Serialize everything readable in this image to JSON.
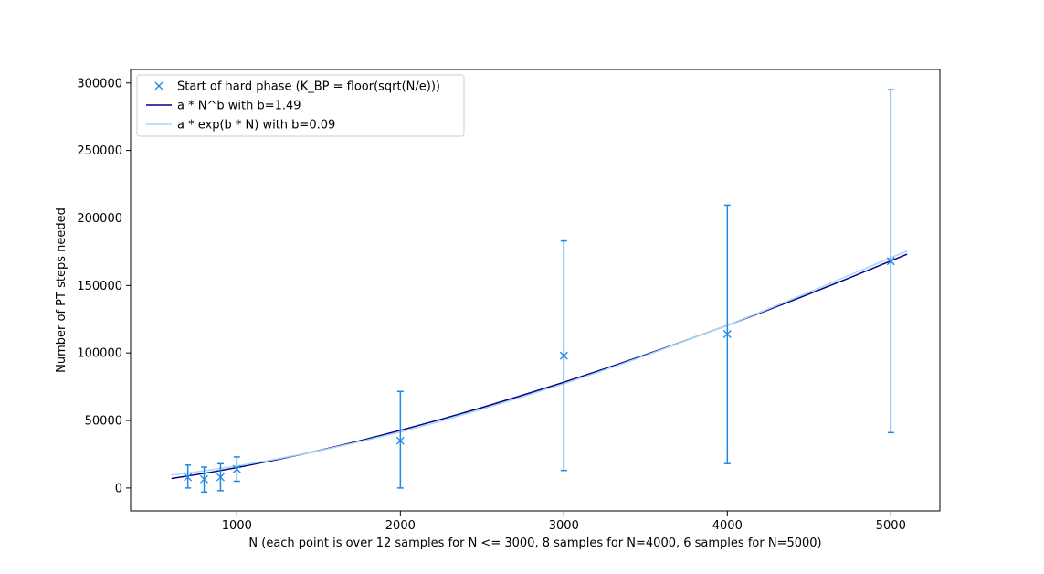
{
  "chart_data": {
    "type": "scatter",
    "title": "",
    "xlabel": "N (each point is over 12 samples for N <= 3000, 8 samples for N=4000, 6 samples for N=5000)",
    "ylabel": "Number of PT steps needed",
    "xlim": [
      350,
      5300
    ],
    "ylim": [
      -17000,
      310000
    ],
    "x_ticks": [
      1000,
      2000,
      3000,
      4000,
      5000
    ],
    "y_ticks": [
      0,
      50000,
      100000,
      150000,
      200000,
      250000,
      300000
    ],
    "grid": false,
    "legend_position": "top-left",
    "series": [
      {
        "name": "Start of hard phase (K_BP = floor(sqrt(N/e)))",
        "kind": "errorbar-markers",
        "marker": "x",
        "color": "#1e88e5",
        "points": [
          {
            "x": 700,
            "y": 8000,
            "err_low": 0,
            "err_high": 17000
          },
          {
            "x": 800,
            "y": 6500,
            "err_low": -3000,
            "err_high": 15500
          },
          {
            "x": 900,
            "y": 8000,
            "err_low": -2000,
            "err_high": 18000
          },
          {
            "x": 1000,
            "y": 14000,
            "err_low": 5000,
            "err_high": 23000
          },
          {
            "x": 2000,
            "y": 35000,
            "err_low": 0,
            "err_high": 71500
          },
          {
            "x": 3000,
            "y": 98000,
            "err_low": 13000,
            "err_high": 183000
          },
          {
            "x": 4000,
            "y": 114000,
            "err_low": 18000,
            "err_high": 209500
          },
          {
            "x": 5000,
            "y": 168000,
            "err_low": 41000,
            "err_high": 295000
          }
        ]
      },
      {
        "name": "a * N^b with b=1.49",
        "kind": "line",
        "color": "#00008b",
        "x": [
          600,
          800,
          1000,
          1250,
          1500,
          1750,
          2000,
          2250,
          2500,
          2750,
          3000,
          3250,
          3500,
          3750,
          4000,
          4250,
          4500,
          4750,
          5000,
          5100
        ],
        "y": [
          7000,
          10800,
          15100,
          21100,
          27700,
          34900,
          42700,
          50900,
          59600,
          68800,
          78300,
          88300,
          98700,
          109400,
          120500,
          131900,
          143700,
          155800,
          168200,
          173200
        ]
      },
      {
        "name": "a * exp(b * N) with b=0.09",
        "kind": "line",
        "color": "#a8d8f0",
        "x": [
          600,
          800,
          1000,
          1250,
          1500,
          1750,
          2000,
          2250,
          2500,
          2750,
          3000,
          3250,
          3500,
          3750,
          4000,
          4250,
          4500,
          4750,
          5000,
          5100
        ],
        "y": [
          9500,
          12700,
          16200,
          21600,
          27500,
          34200,
          41500,
          49600,
          58400,
          67700,
          77300,
          87400,
          98100,
          109300,
          120500,
          132600,
          145000,
          157800,
          170500,
          175500
        ]
      }
    ]
  }
}
